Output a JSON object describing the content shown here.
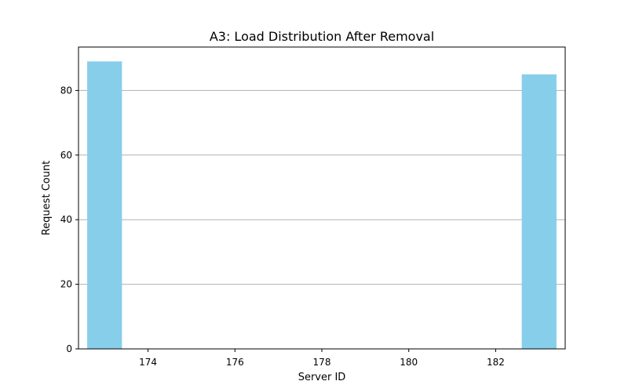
{
  "chart_data": {
    "type": "bar",
    "title": "A3: Load Distribution After Removal",
    "xlabel": "Server ID",
    "ylabel": "Request Count",
    "x": [
      173,
      183
    ],
    "values": [
      89,
      85
    ],
    "bar_width": 0.8,
    "xlim": [
      172.4,
      183.6
    ],
    "ylim": [
      0,
      93.45
    ],
    "xticks": [
      174,
      176,
      178,
      180,
      182
    ],
    "xtick_labels": [
      "174",
      "176",
      "178",
      "180",
      "182"
    ],
    "yticks": [
      0,
      20,
      40,
      60,
      80
    ],
    "ytick_labels": [
      "0",
      "20",
      "40",
      "60",
      "80"
    ],
    "grid": "y-axis horizontal lines",
    "bar_color": "#87ceeb",
    "grid_color": "#b0b0b0"
  }
}
